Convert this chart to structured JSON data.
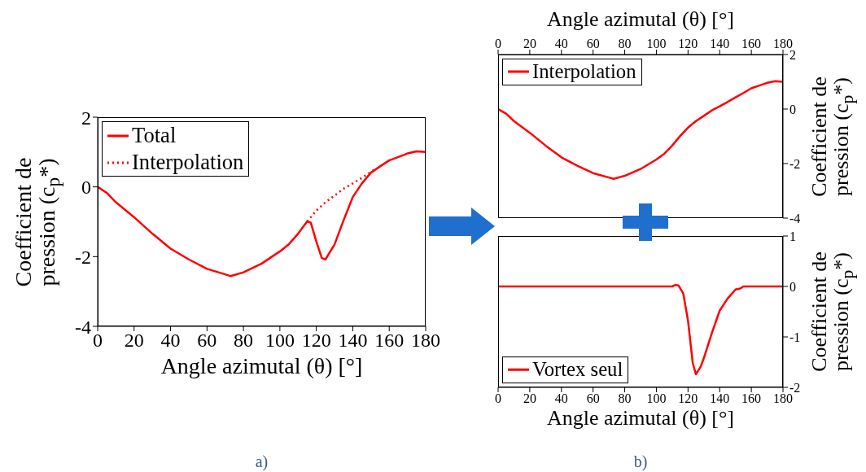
{
  "chart_data": [
    {
      "type": "line",
      "xlabel": "Angle azimutal (θ) [°]",
      "ylabel": "Coefficient de pression (c$_{p}$*)",
      "xlim": [
        0,
        180
      ],
      "xticks": [
        0,
        20,
        40,
        60,
        80,
        100,
        120,
        140,
        160,
        180
      ],
      "ylim": [
        -4,
        2
      ],
      "yticks": [
        -4,
        -2,
        0,
        2
      ],
      "legend": "top left",
      "annotations": [
        "a)"
      ],
      "series": [
        {
          "name": "Total",
          "color": "#ff0000",
          "line_style": "solid",
          "x": [
            0,
            5,
            10,
            20,
            30,
            40,
            50,
            60,
            70,
            73,
            80,
            90,
            100,
            105,
            110,
            115,
            117,
            120,
            123,
            125,
            130,
            135,
            140,
            145,
            150,
            155,
            160,
            165,
            170,
            175,
            180
          ],
          "values": [
            0,
            -0.17,
            -0.44,
            -0.87,
            -1.34,
            -1.77,
            -2.08,
            -2.35,
            -2.51,
            -2.56,
            -2.45,
            -2.2,
            -1.85,
            -1.64,
            -1.34,
            -0.99,
            -1.03,
            -1.57,
            -2.04,
            -2.08,
            -1.65,
            -0.95,
            -0.29,
            0.1,
            0.41,
            0.59,
            0.76,
            0.86,
            0.96,
            1.02,
            1.0
          ]
        },
        {
          "name": "Interpolation",
          "color": "#ff0000",
          "line_style": "dotted",
          "x": [
            115,
            120,
            125,
            130,
            135,
            140,
            145,
            150,
            152
          ],
          "values": [
            -0.99,
            -0.68,
            -0.44,
            -0.25,
            -0.05,
            0.1,
            0.26,
            0.43,
            0.5
          ]
        }
      ]
    },
    {
      "type": "line",
      "xlabel": "Angle azimutal (θ) [°]",
      "y2label": "Coefficient de pression (c$_{p}$*)",
      "xlim": [
        0,
        180
      ],
      "xticks": [
        0,
        20,
        40,
        60,
        80,
        100,
        120,
        140,
        160,
        180
      ],
      "y2lim": [
        -4,
        2
      ],
      "y2ticks": [
        -4,
        -2,
        0,
        2
      ],
      "legend": "top left",
      "series": [
        {
          "name": "Interpolation",
          "color": "#ff0000",
          "line_style": "solid",
          "axis": "y2",
          "x": [
            0,
            5,
            10,
            20,
            30,
            40,
            50,
            60,
            70,
            73,
            80,
            90,
            100,
            105,
            110,
            115,
            120,
            125,
            130,
            135,
            140,
            145,
            150,
            155,
            160,
            165,
            170,
            175,
            180
          ],
          "values": [
            0,
            -0.17,
            -0.44,
            -0.87,
            -1.34,
            -1.77,
            -2.08,
            -2.35,
            -2.51,
            -2.56,
            -2.45,
            -2.2,
            -1.85,
            -1.64,
            -1.34,
            -0.99,
            -0.68,
            -0.44,
            -0.25,
            -0.05,
            0.1,
            0.26,
            0.43,
            0.59,
            0.76,
            0.86,
            0.96,
            1.02,
            1.0
          ]
        }
      ]
    },
    {
      "type": "line",
      "xlabel": "Angle azimutal (θ) [°]",
      "y2label": "Coefficient de pression (c$_{p}$*)",
      "xlim": [
        0,
        180
      ],
      "xticks": [
        0,
        20,
        40,
        60,
        80,
        100,
        120,
        140,
        160,
        180
      ],
      "y2lim": [
        -2,
        1
      ],
      "y2ticks": [
        -2,
        -1,
        0,
        1
      ],
      "legend": "bottom left",
      "annotations": [
        "b)"
      ],
      "series": [
        {
          "name": "Vortex seul",
          "color": "#ff0000",
          "line_style": "solid",
          "axis": "y2",
          "x": [
            0,
            110,
            112,
            114,
            117,
            120,
            123,
            125,
            128,
            130,
            135,
            140,
            145,
            150,
            153,
            155,
            180
          ],
          "values": [
            0,
            0,
            0.03,
            0.02,
            -0.14,
            -0.68,
            -1.52,
            -1.74,
            -1.59,
            -1.42,
            -0.93,
            -0.48,
            -0.24,
            -0.06,
            -0.04,
            0,
            0
          ]
        }
      ]
    }
  ]
}
